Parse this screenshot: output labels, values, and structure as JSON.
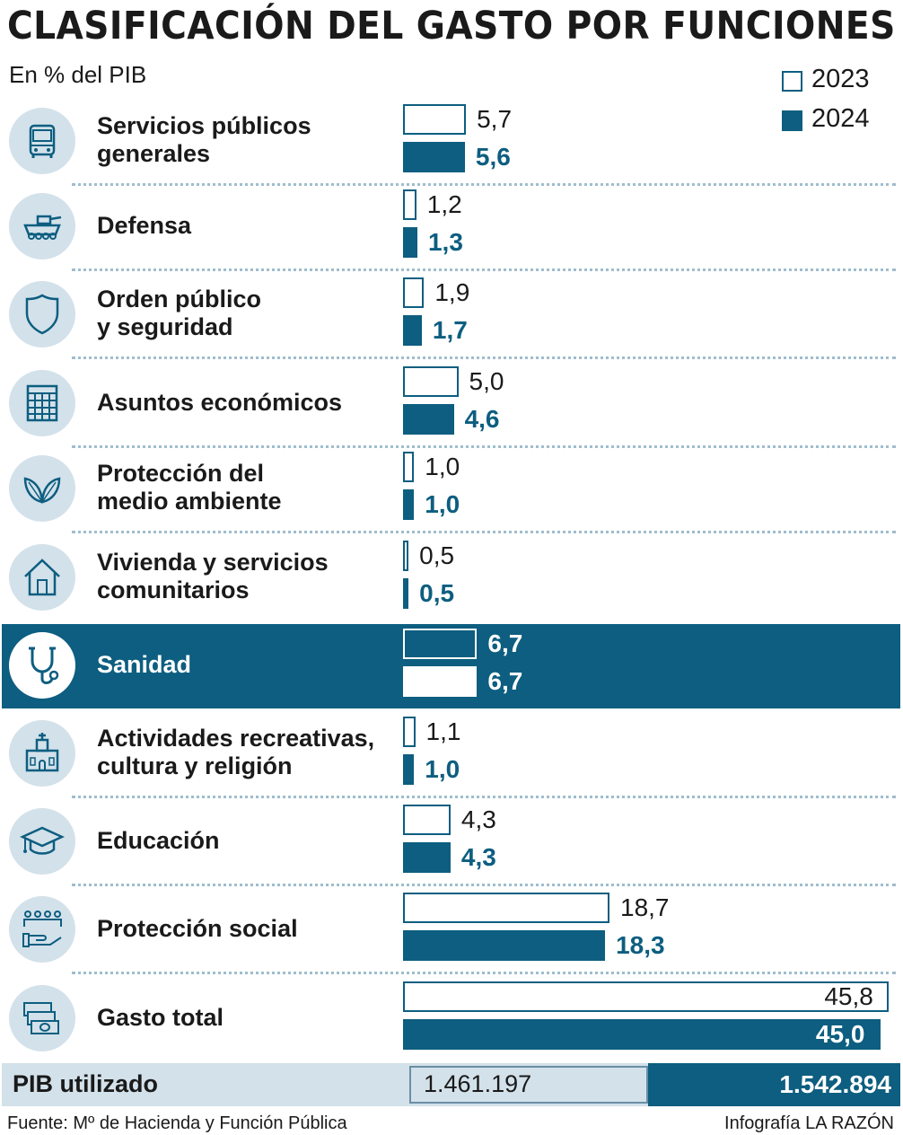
{
  "title": "CLASIFICACIÓN DEL GASTO POR FUNCIONES",
  "subtitle": "En % del PIB",
  "legend": [
    {
      "label": "2023",
      "style": "outline"
    },
    {
      "label": "2024",
      "style": "filled"
    }
  ],
  "colors": {
    "accent": "#0d5e80",
    "icon_bg": "#d3e1ea",
    "pib_bg": "#d3e1ea"
  },
  "chart_data": {
    "type": "bar",
    "orientation": "horizontal",
    "title": "CLASIFICACIÓN DEL GASTO POR FUNCIONES",
    "ylabel": "En % del PIB",
    "categories": [
      {
        "lines": [
          "Servicios públicos",
          "generales"
        ],
        "icon": "bus-icon"
      },
      {
        "lines": [
          "Defensa"
        ],
        "icon": "armored-vehicle-icon"
      },
      {
        "lines": [
          "Orden público",
          "y seguridad"
        ],
        "icon": "shield-icon"
      },
      {
        "lines": [
          "Asuntos económicos"
        ],
        "icon": "calculator-icon"
      },
      {
        "lines": [
          "Protección del",
          "medio ambiente"
        ],
        "icon": "leaves-icon"
      },
      {
        "lines": [
          "Vivienda y servicios",
          "comunitarios"
        ],
        "icon": "house-icon"
      },
      {
        "lines": [
          "Sanidad"
        ],
        "icon": "stethoscope-icon",
        "highlighted": true
      },
      {
        "lines": [
          "Actividades recreativas,",
          "cultura y religión"
        ],
        "icon": "church-icon"
      },
      {
        "lines": [
          "Educación"
        ],
        "icon": "graduation-cap-icon"
      },
      {
        "lines": [
          "Protección social"
        ],
        "icon": "people-hand-icon"
      },
      {
        "lines": [
          "Gasto total"
        ],
        "icon": "money-stack-icon"
      }
    ],
    "series": [
      {
        "name": "2023",
        "values": [
          5.7,
          1.2,
          1.9,
          5.0,
          1.0,
          0.5,
          6.7,
          1.1,
          4.3,
          18.7,
          45.8
        ],
        "labels": [
          "5,7",
          "1,2",
          "1,9",
          "5,0",
          "1,0",
          "0,5",
          "6,7",
          "1,1",
          "4,3",
          "18,7",
          "45,8"
        ]
      },
      {
        "name": "2024",
        "values": [
          5.6,
          1.3,
          1.7,
          4.6,
          1.0,
          0.5,
          6.7,
          1.0,
          4.3,
          18.3,
          45.0
        ],
        "labels": [
          "5,6",
          "1,3",
          "1,7",
          "4,6",
          "1,0",
          "0,5",
          "6,7",
          "1,0",
          "4,3",
          "18,3",
          "45,0"
        ]
      }
    ]
  },
  "pib": {
    "label": "PIB utilizado",
    "value_2023": "1.461.197",
    "value_2024": "1.542.894"
  },
  "footer": {
    "source": "Fuente: Mº de Hacienda y Función Pública",
    "credit": "Infografía LA RAZÓN"
  }
}
